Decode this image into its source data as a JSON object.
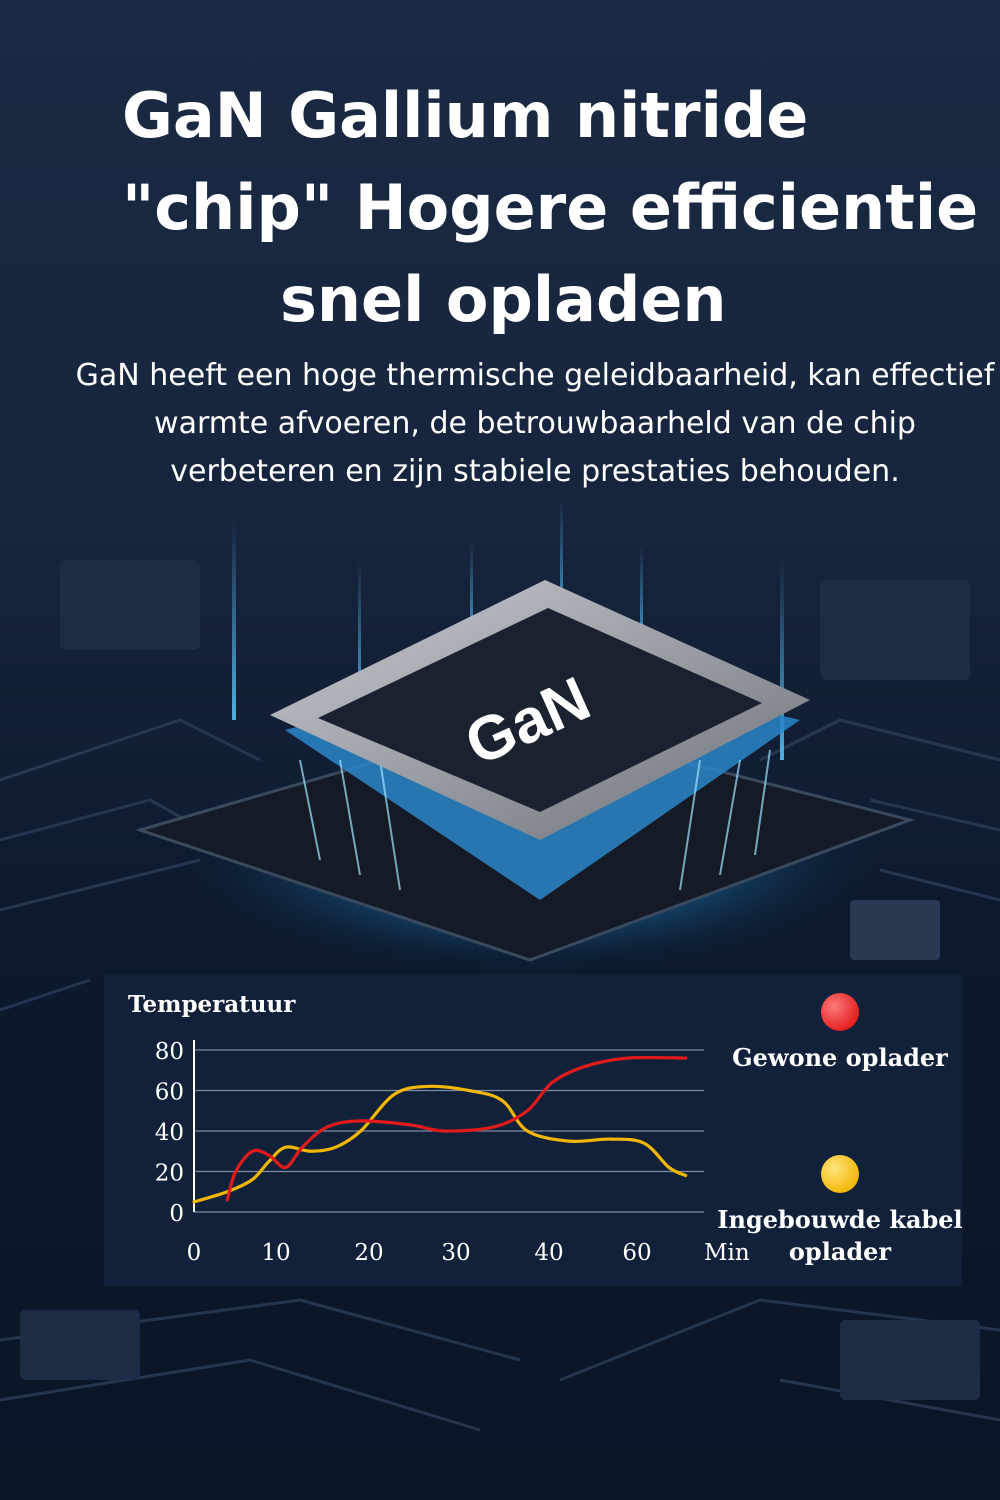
{
  "title": {
    "line1": "GaN Gallium nitride",
    "line2": "\"chip\" Hogere efficientie",
    "line3": "snel opladen"
  },
  "subtitle": "GaN heeft een hoge thermische geleidbaarheid, kan effectief warmte afvoeren, de betrouwbaarheld van de chip verbeteren en zijn stabiele prestaties behouden.",
  "chip_label": "GaN",
  "colors": {
    "accent_glow": "#4fc3ff",
    "series_red": "#e11b1b",
    "series_yellow": "#f2b705",
    "panel": "#12213a"
  },
  "chart_data": {
    "type": "line",
    "title": "",
    "ylabel": "Temperatuur",
    "xlabel": "Min",
    "x_tick_labels": [
      "0",
      "10",
      "20",
      "30",
      "40",
      "60",
      "Min"
    ],
    "y_ticks": [
      0,
      20,
      40,
      60,
      80
    ],
    "ylim": [
      0,
      80
    ],
    "grid": true,
    "legend_position": "right",
    "series": [
      {
        "name": "Gewone oplader",
        "color": "#e11b1b",
        "points": [
          [
            4,
            6
          ],
          [
            5,
            20
          ],
          [
            7,
            30
          ],
          [
            9,
            28
          ],
          [
            11,
            22
          ],
          [
            13,
            32
          ],
          [
            16,
            42
          ],
          [
            20,
            45
          ],
          [
            26,
            43
          ],
          [
            30,
            40
          ],
          [
            36,
            42
          ],
          [
            40,
            50
          ],
          [
            43,
            64
          ],
          [
            47,
            72
          ],
          [
            52,
            76
          ],
          [
            59,
            76
          ]
        ]
      },
      {
        "name": "Ingebouwde kabel oplader",
        "color": "#f2b705",
        "points": [
          [
            0,
            5
          ],
          [
            4,
            10
          ],
          [
            7,
            16
          ],
          [
            9,
            25
          ],
          [
            11,
            32
          ],
          [
            14,
            30
          ],
          [
            17,
            32
          ],
          [
            20,
            40
          ],
          [
            24,
            58
          ],
          [
            28,
            62
          ],
          [
            33,
            60
          ],
          [
            37,
            55
          ],
          [
            40,
            40
          ],
          [
            45,
            35
          ],
          [
            50,
            36
          ],
          [
            54,
            34
          ],
          [
            57,
            22
          ],
          [
            59,
            18
          ]
        ]
      }
    ]
  }
}
